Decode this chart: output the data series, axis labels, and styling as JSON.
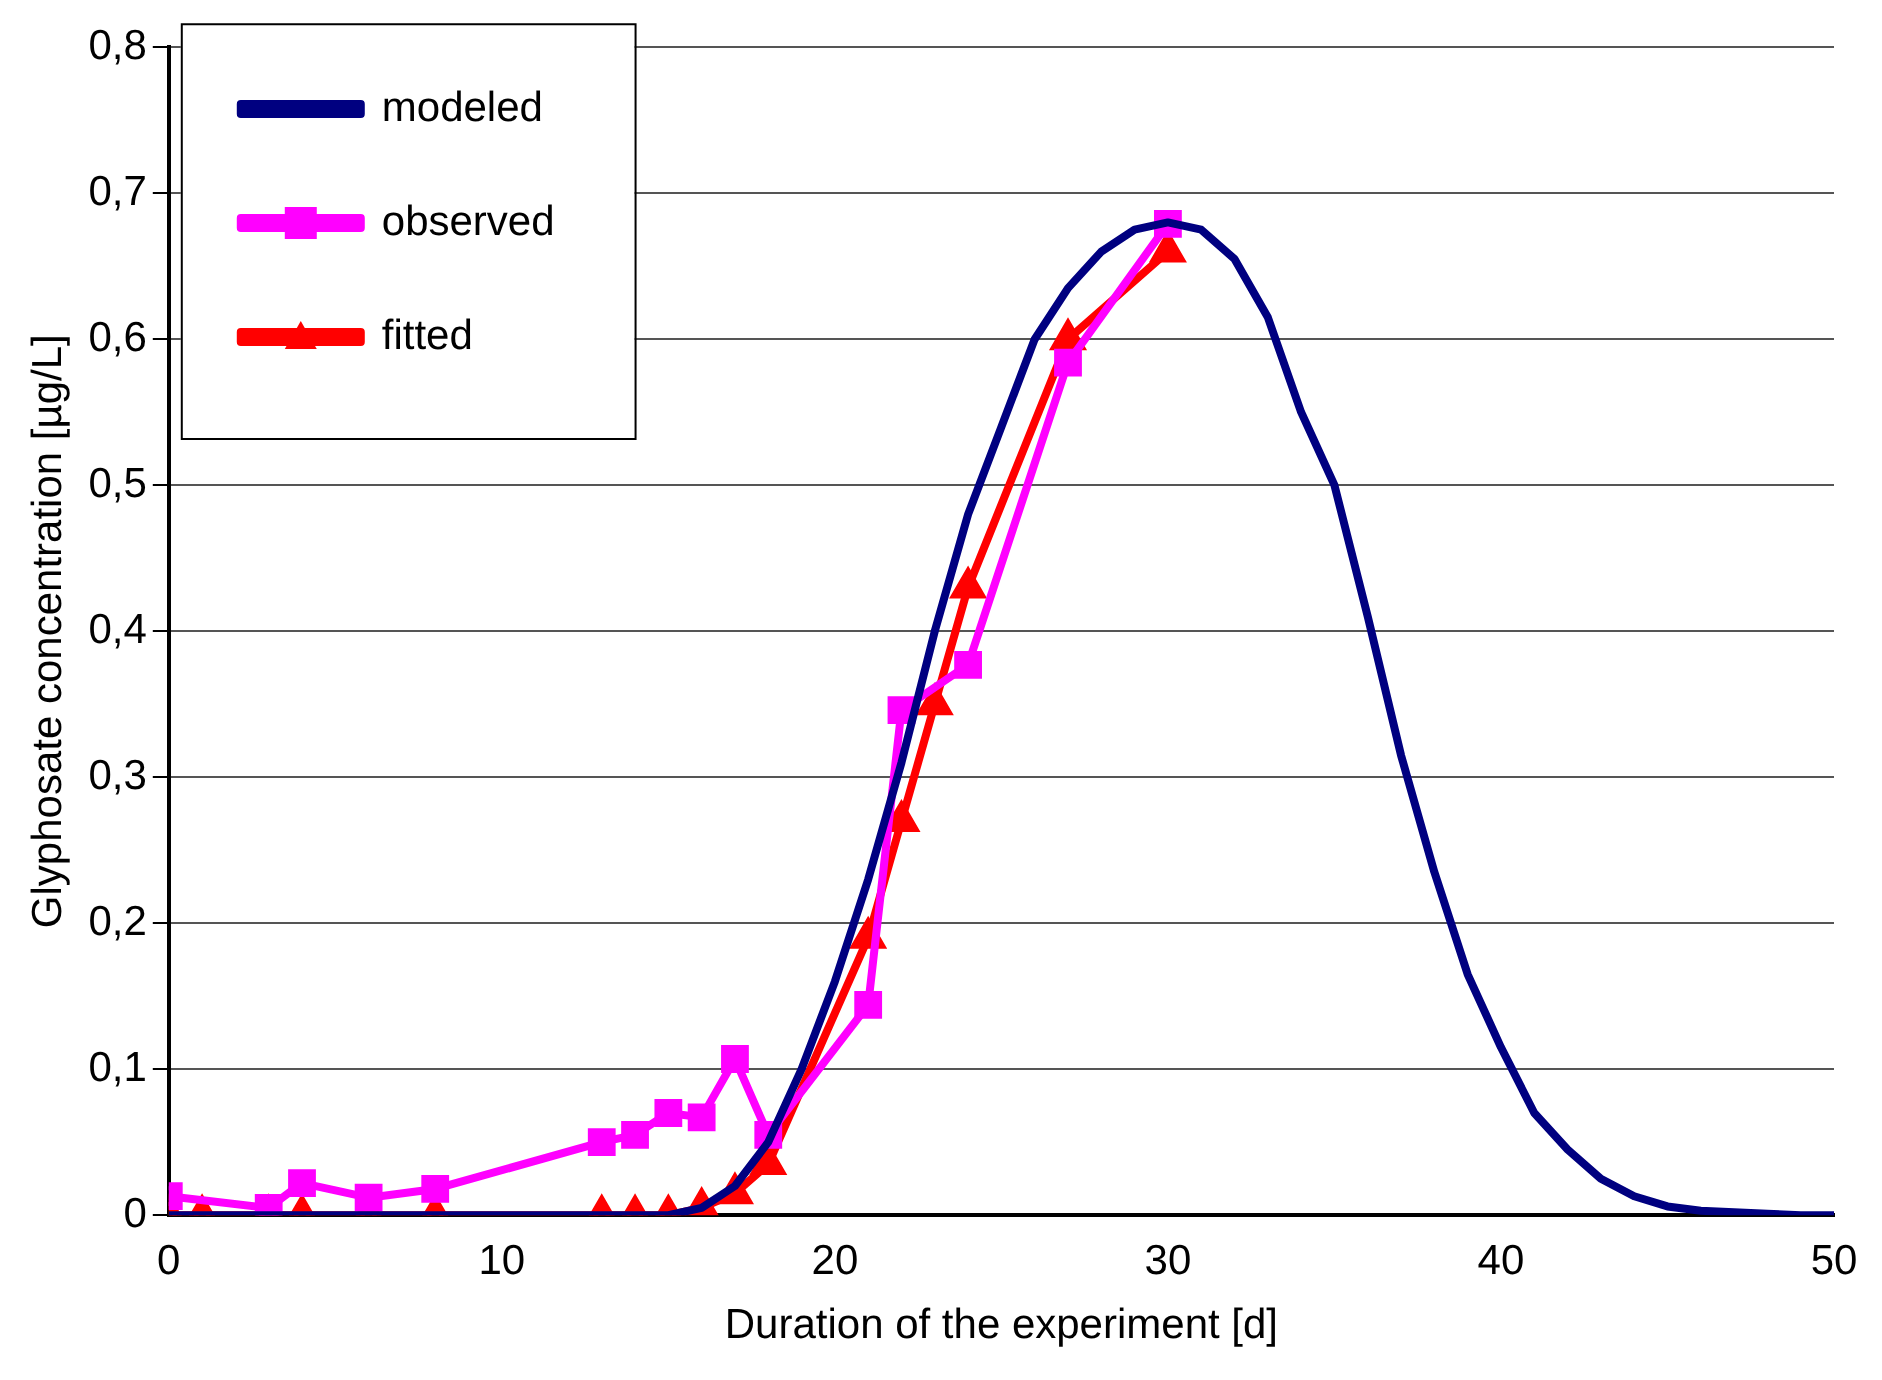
{
  "chart_data": {
    "type": "line",
    "xlabel": "Duration of the experiment [d]",
    "ylabel": "Glyphosate concentration [µg/L]",
    "xlim": [
      0,
      50
    ],
    "xticks": [
      0,
      10,
      20,
      30,
      40,
      50
    ],
    "ylim": [
      0,
      0.8
    ],
    "yticks": [
      0,
      {
        "value": 0.1,
        "label": "0,1"
      },
      {
        "value": 0.2,
        "label": "0,2"
      },
      {
        "value": 0.3,
        "label": "0,3"
      },
      {
        "value": 0.4,
        "label": "0,4"
      },
      {
        "value": 0.5,
        "label": "0,5"
      },
      {
        "value": 0.6,
        "label": "0,6"
      },
      {
        "value": 0.7,
        "label": "0,7"
      },
      {
        "value": 0.8,
        "label": "0,8"
      }
    ],
    "grid": "y",
    "legend": "top left",
    "series": [
      {
        "name": "modeled",
        "color": "#000080",
        "marker": "none",
        "x": [
          0,
          5,
          10,
          15,
          16,
          17,
          18,
          19,
          20,
          21,
          22,
          23,
          24,
          25,
          26,
          27,
          28,
          29,
          30,
          31,
          32,
          33,
          34,
          35,
          36,
          37,
          38,
          39,
          40,
          41,
          42,
          43,
          44,
          45,
          46,
          47,
          48,
          49,
          50
        ],
        "values": [
          0,
          0,
          0,
          0,
          0.005,
          0.02,
          0.05,
          0.1,
          0.16,
          0.23,
          0.31,
          0.4,
          0.48,
          0.54,
          0.6,
          0.635,
          0.66,
          0.675,
          0.68,
          0.675,
          0.655,
          0.615,
          0.55,
          0.5,
          0.41,
          0.315,
          0.235,
          0.165,
          0.115,
          0.07,
          0.045,
          0.025,
          0.013,
          0.006,
          0.003,
          0.002,
          0.001,
          0,
          0
        ]
      },
      {
        "name": "observed",
        "color": "#ff00ff",
        "marker": "square",
        "x": [
          0,
          3,
          4,
          6,
          8,
          13,
          14,
          15,
          16,
          17,
          18,
          21,
          22,
          24,
          27,
          30
        ],
        "values": [
          0.013,
          0.005,
          0.022,
          0.012,
          0.018,
          0.05,
          0.055,
          0.07,
          0.067,
          0.107,
          0.055,
          0.144,
          0.346,
          0.377,
          0.584,
          0.679
        ]
      },
      {
        "name": "fitted",
        "color": "#ff0000",
        "marker": "triangle",
        "x": [
          0,
          1,
          3,
          4,
          6,
          8,
          13,
          14,
          15,
          16,
          17,
          18,
          21,
          22,
          23,
          24,
          27,
          30
        ],
        "values": [
          0,
          0,
          0,
          0,
          0,
          0,
          0,
          0,
          0,
          0.005,
          0.015,
          0.035,
          0.19,
          0.27,
          0.35,
          0.43,
          0.6,
          0.66
        ]
      }
    ]
  }
}
